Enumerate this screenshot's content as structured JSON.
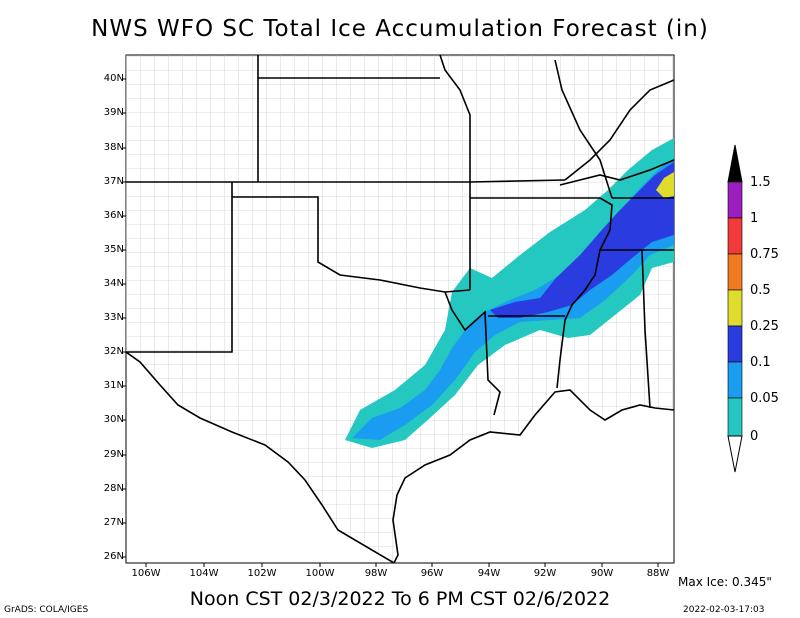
{
  "title": "NWS WFO SC Total Ice Accumulation Forecast (in)",
  "latitude_labels": [
    "40N",
    "39N",
    "38N",
    "37N",
    "36N",
    "35N",
    "34N",
    "33N",
    "32N",
    "31N",
    "30N",
    "29N",
    "28N",
    "27N",
    "26N"
  ],
  "longitude_labels": [
    "106W",
    "104W",
    "102W",
    "100W",
    "98W",
    "96W",
    "94W",
    "92W",
    "90W",
    "88W"
  ],
  "colorbar": {
    "labels": [
      "1.5",
      "1",
      "0.75",
      "0.5",
      "0.25",
      "0.1",
      "0.05",
      "0"
    ],
    "colors": [
      "#000000",
      "#9b1fbf",
      "#f23a3a",
      "#f07b22",
      "#e0dc2e",
      "#2a3ce0",
      "#1a9cf0",
      "#25c8c0"
    ]
  },
  "max_ice": "Max Ice: 0.345\"",
  "date_range": "Noon CST 02/3/2022 To 6 PM CST 02/6/2022",
  "software": "GrADS: COLA/IGES",
  "timestamp": "2022-02-03-17:03",
  "ice_colors": {
    "light": "#25c8c0",
    "medium": "#1a9cf0",
    "heavy": "#2a3ce0",
    "max": "#e0dc2e"
  }
}
